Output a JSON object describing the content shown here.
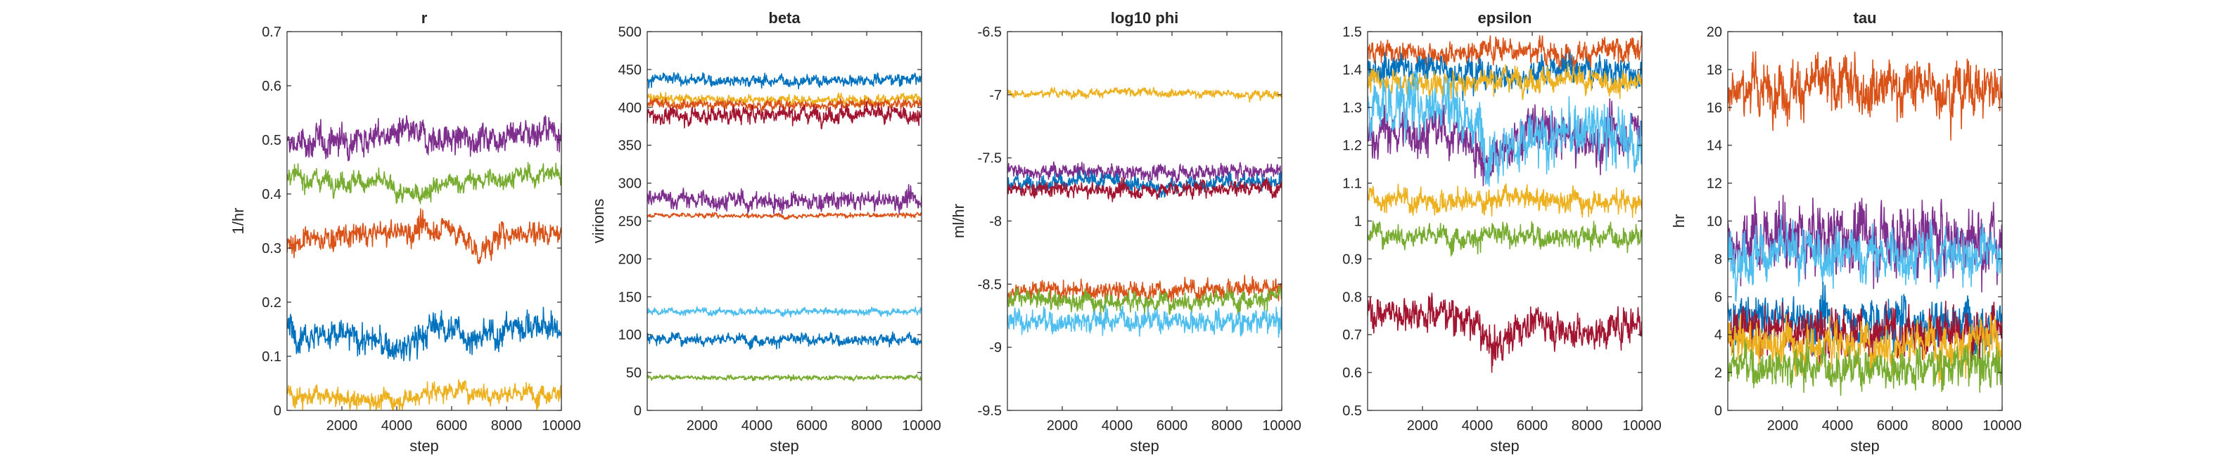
{
  "colors": {
    "blue": "#0072BD",
    "orange": "#D95319",
    "yellow": "#EDB120",
    "purple": "#7E2F8E",
    "green": "#77AC30",
    "cyan": "#4DBEEE",
    "darkred": "#A2142F"
  },
  "chart_data": [
    {
      "type": "line",
      "title": "r",
      "xlabel": "step",
      "ylabel": "1/hr",
      "xlim": [
        0,
        10000
      ],
      "ylim": [
        0,
        0.7
      ],
      "xticks": [
        2000,
        4000,
        6000,
        8000,
        10000
      ],
      "xtick_labels": [
        "2000",
        "4000",
        "6000",
        "8000",
        "10000"
      ],
      "yticks": [
        0,
        0.1,
        0.2,
        0.3,
        0.4,
        0.5,
        0.6,
        0.7
      ],
      "ytick_labels": [
        "0",
        "0.1",
        "0.2",
        "0.3",
        "0.4",
        "0.5",
        "0.6",
        "0.7"
      ],
      "grid": false,
      "series": [
        {
          "color": "purple",
          "trace": [
            [
              0,
              0.49
            ],
            [
              2000,
              0.5
            ],
            [
              4000,
              0.51
            ],
            [
              6000,
              0.5
            ],
            [
              8000,
              0.51
            ],
            [
              10000,
              0.52
            ]
          ],
          "noise": 0.018
        },
        {
          "color": "green",
          "trace": [
            [
              0,
              0.43
            ],
            [
              2000,
              0.425
            ],
            [
              3500,
              0.42
            ],
            [
              4300,
              0.395
            ],
            [
              6000,
              0.42
            ],
            [
              8000,
              0.43
            ],
            [
              10000,
              0.44
            ]
          ],
          "noise": 0.012
        },
        {
          "color": "orange",
          "trace": [
            [
              0,
              0.31
            ],
            [
              2000,
              0.32
            ],
            [
              4000,
              0.33
            ],
            [
              6000,
              0.34
            ],
            [
              7000,
              0.29
            ],
            [
              8000,
              0.33
            ],
            [
              10000,
              0.33
            ]
          ],
          "noise": 0.015
        },
        {
          "color": "blue",
          "trace": [
            [
              0,
              0.15
            ],
            [
              3000,
              0.13
            ],
            [
              4200,
              0.11
            ],
            [
              5500,
              0.16
            ],
            [
              7000,
              0.13
            ],
            [
              8500,
              0.16
            ],
            [
              10000,
              0.15
            ]
          ],
          "noise": 0.018
        },
        {
          "color": "yellow",
          "trace": [
            [
              0,
              0.03
            ],
            [
              2000,
              0.02
            ],
            [
              4000,
              0.02
            ],
            [
              6000,
              0.04
            ],
            [
              8000,
              0.03
            ],
            [
              10000,
              0.035
            ]
          ],
          "noise": 0.012
        }
      ]
    },
    {
      "type": "line",
      "title": "beta",
      "xlabel": "step",
      "ylabel": "virions",
      "xlim": [
        0,
        10000
      ],
      "ylim": [
        0,
        500
      ],
      "xticks": [
        2000,
        4000,
        6000,
        8000,
        10000
      ],
      "xtick_labels": [
        "2000",
        "4000",
        "6000",
        "8000",
        "10000"
      ],
      "yticks": [
        0,
        50,
        100,
        150,
        200,
        250,
        300,
        350,
        400,
        450,
        500
      ],
      "ytick_labels": [
        "0",
        "50",
        "100",
        "150",
        "200",
        "250",
        "300",
        "350",
        "400",
        "450",
        "500"
      ],
      "grid": false,
      "series": [
        {
          "color": "blue",
          "trace": [
            [
              0,
              437
            ],
            [
              5000,
              435
            ],
            [
              10000,
              438
            ]
          ],
          "noise": 5
        },
        {
          "color": "yellow",
          "trace": [
            [
              0,
              412
            ],
            [
              5000,
              410
            ],
            [
              10000,
              411
            ]
          ],
          "noise": 4
        },
        {
          "color": "orange",
          "trace": [
            [
              0,
              405
            ],
            [
              5000,
              403
            ],
            [
              10000,
              405
            ]
          ],
          "noise": 4
        },
        {
          "color": "darkred",
          "trace": [
            [
              0,
              388
            ],
            [
              5000,
              392
            ],
            [
              10000,
              390
            ]
          ],
          "noise": 7
        },
        {
          "color": "purple",
          "trace": [
            [
              0,
              280
            ],
            [
              5000,
              275
            ],
            [
              10000,
              278
            ]
          ],
          "noise": 8
        },
        {
          "color": "orange",
          "trace": [
            [
              0,
              258
            ],
            [
              5000,
              257
            ],
            [
              10000,
              258
            ]
          ],
          "noise": 2
        },
        {
          "color": "cyan",
          "trace": [
            [
              0,
              131
            ],
            [
              5000,
              130
            ],
            [
              10000,
              131
            ]
          ],
          "noise": 3
        },
        {
          "color": "blue",
          "trace": [
            [
              0,
              96
            ],
            [
              5000,
              93
            ],
            [
              10000,
              94
            ]
          ],
          "noise": 5
        },
        {
          "color": "green",
          "trace": [
            [
              0,
              44
            ],
            [
              5000,
              43
            ],
            [
              10000,
              44
            ]
          ],
          "noise": 2
        }
      ]
    },
    {
      "type": "line",
      "title": "log10 phi",
      "xlabel": "step",
      "ylabel": "ml/hr",
      "xlim": [
        0,
        10000
      ],
      "ylim": [
        -9.5,
        -6.5
      ],
      "xticks": [
        2000,
        4000,
        6000,
        8000,
        10000
      ],
      "xtick_labels": [
        "2000",
        "4000",
        "6000",
        "8000",
        "10000"
      ],
      "yticks": [
        -9.5,
        -9,
        -8.5,
        -8,
        -7.5,
        -7,
        -6.5
      ],
      "ytick_labels": [
        "-9.5",
        "-9",
        "-8.5",
        "-8",
        "-7.5",
        "-7",
        "-6.5"
      ],
      "grid": false,
      "series": [
        {
          "color": "yellow",
          "trace": [
            [
              0,
              -6.99
            ],
            [
              5000,
              -6.98
            ],
            [
              10000,
              -7.0
            ]
          ],
          "noise": 0.02
        },
        {
          "color": "purple",
          "trace": [
            [
              0,
              -7.6
            ],
            [
              5000,
              -7.62
            ],
            [
              10000,
              -7.6
            ]
          ],
          "noise": 0.04
        },
        {
          "color": "blue",
          "trace": [
            [
              0,
              -7.7
            ],
            [
              4000,
              -7.68
            ],
            [
              5500,
              -7.75
            ],
            [
              7000,
              -7.7
            ],
            [
              10000,
              -7.68
            ]
          ],
          "noise": 0.04
        },
        {
          "color": "darkred",
          "trace": [
            [
              0,
              -7.75
            ],
            [
              5000,
              -7.76
            ],
            [
              10000,
              -7.72
            ]
          ],
          "noise": 0.04
        },
        {
          "color": "orange",
          "trace": [
            [
              0,
              -8.55
            ],
            [
              5000,
              -8.56
            ],
            [
              10000,
              -8.52
            ]
          ],
          "noise": 0.05
        },
        {
          "color": "green",
          "trace": [
            [
              0,
              -8.62
            ],
            [
              5000,
              -8.64
            ],
            [
              10000,
              -8.6
            ]
          ],
          "noise": 0.05
        },
        {
          "color": "cyan",
          "trace": [
            [
              0,
              -8.8
            ],
            [
              5000,
              -8.78
            ],
            [
              10000,
              -8.8
            ]
          ],
          "noise": 0.06
        }
      ]
    },
    {
      "type": "line",
      "title": "epsilon",
      "xlabel": "step",
      "ylabel": "",
      "xlim": [
        0,
        10000
      ],
      "ylim": [
        0.5,
        1.5
      ],
      "xticks": [
        2000,
        4000,
        6000,
        8000,
        10000
      ],
      "xtick_labels": [
        "2000",
        "4000",
        "6000",
        "8000",
        "10000"
      ],
      "yticks": [
        0.5,
        0.6,
        0.7,
        0.8,
        0.9,
        1.0,
        1.1,
        1.2,
        1.3,
        1.4,
        1.5
      ],
      "ytick_labels": [
        "0.5",
        "0.6",
        "0.7",
        "0.8",
        "0.9",
        "1",
        "1.1",
        "1.2",
        "1.3",
        "1.4",
        "1.5"
      ],
      "grid": false,
      "series": [
        {
          "color": "orange",
          "trace": [
            [
              0,
              1.45
            ],
            [
              3000,
              1.44
            ],
            [
              5000,
              1.46
            ],
            [
              7000,
              1.44
            ],
            [
              10000,
              1.45
            ]
          ],
          "noise": 0.02
        },
        {
          "color": "blue",
          "trace": [
            [
              0,
              1.41
            ],
            [
              3000,
              1.4
            ],
            [
              5000,
              1.38
            ],
            [
              7000,
              1.4
            ],
            [
              10000,
              1.39
            ]
          ],
          "noise": 0.025
        },
        {
          "color": "yellow",
          "trace": [
            [
              0,
              1.37
            ],
            [
              3000,
              1.36
            ],
            [
              5000,
              1.38
            ],
            [
              10000,
              1.36
            ]
          ],
          "noise": 0.02
        },
        {
          "color": "purple",
          "trace": [
            [
              0,
              1.23
            ],
            [
              3000,
              1.24
            ],
            [
              3800,
              1.2
            ],
            [
              4500,
              1.15
            ],
            [
              6000,
              1.25
            ],
            [
              8000,
              1.2
            ],
            [
              10000,
              1.25
            ]
          ],
          "noise": 0.04
        },
        {
          "color": "cyan",
          "trace": [
            [
              0,
              1.3
            ],
            [
              3000,
              1.32
            ],
            [
              4500,
              1.2
            ],
            [
              6000,
              1.2
            ],
            [
              8000,
              1.25
            ],
            [
              10000,
              1.2
            ]
          ],
          "noise": 0.05
        },
        {
          "color": "yellow",
          "trace": [
            [
              0,
              1.06
            ],
            [
              3000,
              1.05
            ],
            [
              5000,
              1.06
            ],
            [
              10000,
              1.05
            ]
          ],
          "noise": 0.02
        },
        {
          "color": "green",
          "trace": [
            [
              0,
              0.97
            ],
            [
              3000,
              0.96
            ],
            [
              5000,
              0.96
            ],
            [
              10000,
              0.96
            ]
          ],
          "noise": 0.02
        },
        {
          "color": "darkred",
          "trace": [
            [
              0,
              0.76
            ],
            [
              3000,
              0.76
            ],
            [
              4000,
              0.72
            ],
            [
              4500,
              0.66
            ],
            [
              6000,
              0.74
            ],
            [
              8000,
              0.7
            ],
            [
              10000,
              0.74
            ]
          ],
          "noise": 0.03
        }
      ]
    },
    {
      "type": "line",
      "title": "tau",
      "xlabel": "step",
      "ylabel": "hr",
      "xlim": [
        0,
        10000
      ],
      "ylim": [
        0,
        20
      ],
      "xticks": [
        2000,
        4000,
        6000,
        8000,
        10000
      ],
      "xtick_labels": [
        "2000",
        "4000",
        "6000",
        "8000",
        "10000"
      ],
      "yticks": [
        0,
        2,
        4,
        6,
        8,
        10,
        12,
        14,
        16,
        18,
        20
      ],
      "ytick_labels": [
        "0",
        "2",
        "4",
        "6",
        "8",
        "10",
        "12",
        "14",
        "16",
        "18",
        "20"
      ],
      "grid": false,
      "series": [
        {
          "color": "orange",
          "trace": [
            [
              0,
              17
            ],
            [
              5000,
              17.2
            ],
            [
              10000,
              17
            ]
          ],
          "noise": 0.9
        },
        {
          "color": "purple",
          "trace": [
            [
              0,
              9
            ],
            [
              5000,
              9.2
            ],
            [
              10000,
              9
            ]
          ],
          "noise": 1.2
        },
        {
          "color": "cyan",
          "trace": [
            [
              0,
              8.3
            ],
            [
              5000,
              8.2
            ],
            [
              10000,
              8.3
            ]
          ],
          "noise": 0.9
        },
        {
          "color": "blue",
          "trace": [
            [
              0,
              4.8
            ],
            [
              5000,
              4.7
            ],
            [
              10000,
              4.8
            ]
          ],
          "noise": 0.8
        },
        {
          "color": "darkred",
          "trace": [
            [
              0,
              4.2
            ],
            [
              5000,
              4.1
            ],
            [
              10000,
              4.2
            ]
          ],
          "noise": 0.8
        },
        {
          "color": "yellow",
          "trace": [
            [
              0,
              3.6
            ],
            [
              5000,
              3.5
            ],
            [
              10000,
              3.6
            ]
          ],
          "noise": 0.8
        },
        {
          "color": "green",
          "trace": [
            [
              0,
              2.4
            ],
            [
              5000,
              2.3
            ],
            [
              10000,
              2.4
            ]
          ],
          "noise": 0.7
        }
      ]
    }
  ]
}
